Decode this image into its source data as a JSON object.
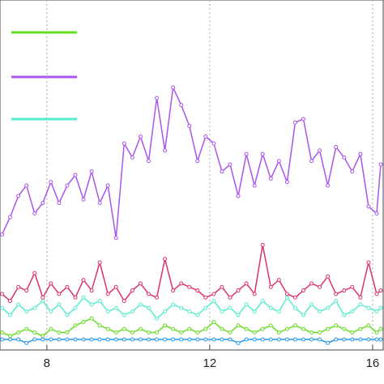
{
  "chart_data": {
    "type": "line",
    "x": [
      6.9,
      7.1,
      7.3,
      7.5,
      7.7,
      7.9,
      8.1,
      8.3,
      8.5,
      8.7,
      8.9,
      9.1,
      9.3,
      9.5,
      9.7,
      9.9,
      10.1,
      10.3,
      10.5,
      10.7,
      10.9,
      11.1,
      11.3,
      11.5,
      11.7,
      11.9,
      12.1,
      12.3,
      12.5,
      12.7,
      12.9,
      13.1,
      13.3,
      13.5,
      13.7,
      13.9,
      14.1,
      14.3,
      14.5,
      14.7,
      14.9,
      15.1,
      15.3,
      15.5,
      15.7,
      15.9,
      16.1,
      16.2
    ],
    "series": [
      {
        "color": "#66dd22",
        "values": [
          5,
          4,
          5,
          6,
          5,
          4,
          6,
          5,
          5,
          7,
          8,
          9,
          7,
          6,
          5,
          6,
          5,
          6,
          5,
          5,
          7,
          6,
          5,
          6,
          5,
          6,
          8,
          6,
          5,
          7,
          6,
          5,
          6,
          7,
          5,
          6,
          7,
          6,
          5,
          5,
          6,
          7,
          6,
          5,
          6,
          7,
          5,
          6
        ]
      },
      {
        "color": "#aa55ee",
        "values": [
          33,
          38,
          44,
          47,
          39,
          42,
          48,
          42,
          47,
          50,
          43,
          51,
          42,
          47,
          32,
          59,
          55,
          61,
          54,
          72,
          57,
          75,
          70,
          64,
          54,
          61,
          59,
          51,
          53,
          44,
          56,
          47,
          56,
          49,
          54,
          48,
          65,
          66,
          54,
          57,
          47,
          58,
          55,
          51,
          56,
          41,
          39,
          53
        ]
      },
      {
        "color": "#55eecc",
        "values": [
          12,
          10,
          13,
          11,
          12,
          14,
          11,
          13,
          10,
          12,
          15,
          13,
          14,
          11,
          12,
          10,
          11,
          13,
          12,
          9,
          11,
          13,
          12,
          11,
          10,
          12,
          14,
          11,
          12,
          10,
          13,
          11,
          14,
          12,
          11,
          15,
          12,
          10,
          13,
          11,
          12,
          14,
          10,
          11,
          13,
          12,
          11,
          12
        ]
      },
      {
        "color": "#dd3366",
        "values": [
          16,
          14,
          18,
          17,
          22,
          15,
          19,
          16,
          18,
          15,
          20,
          17,
          25,
          16,
          18,
          14,
          17,
          19,
          16,
          15,
          26,
          17,
          19,
          18,
          17,
          15,
          16,
          18,
          15,
          17,
          19,
          16,
          30,
          18,
          20,
          16,
          15,
          17,
          19,
          18,
          21,
          16,
          17,
          18,
          15,
          25,
          16,
          17
        ]
      },
      {
        "color": "#2299ee",
        "values": [
          3,
          3,
          3,
          2,
          3,
          3,
          3,
          3,
          3,
          3,
          3,
          3,
          3,
          3,
          3,
          3,
          3,
          3,
          3,
          3,
          3,
          3,
          3,
          3,
          3,
          3,
          3,
          3,
          3,
          2,
          3,
          3,
          3,
          3,
          3,
          3,
          3,
          3,
          3,
          3,
          2,
          3,
          3,
          3,
          3,
          3,
          3,
          3
        ]
      }
    ],
    "xlim": [
      6.85,
      16.28
    ],
    "xticks": [
      8,
      12,
      16
    ],
    "ylim": [
      0,
      100
    ],
    "grid": true
  }
}
